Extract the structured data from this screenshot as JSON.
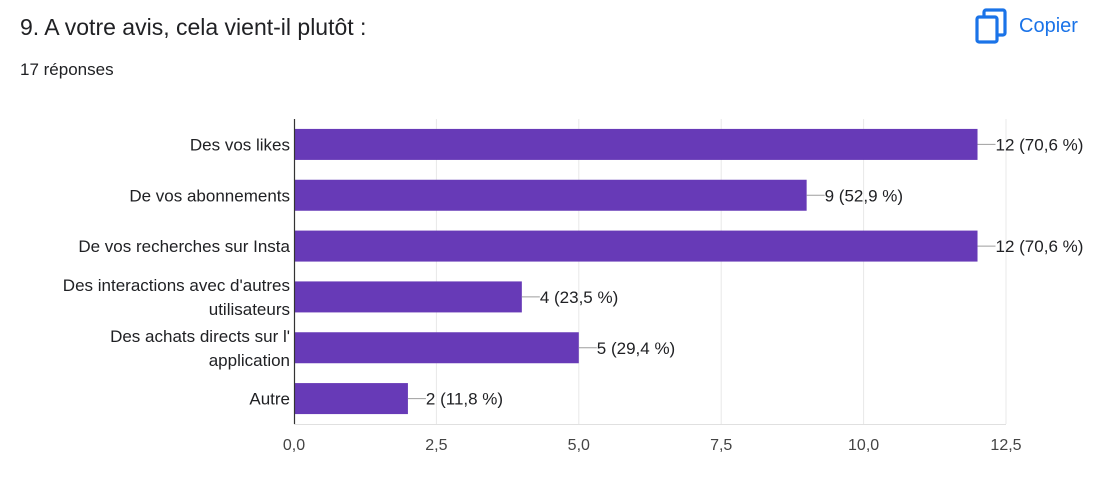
{
  "header": {
    "question_title": "9. A votre avis, cela vient-il plutôt :",
    "response_count": "17 réponses",
    "copy_label": "Copier",
    "copy_icon": "copy-icon",
    "accent_color": "#1a73e8"
  },
  "chart_data": {
    "type": "bar",
    "orientation": "horizontal",
    "categories": [
      [
        "Des vos likes"
      ],
      [
        "De vos abonnements"
      ],
      [
        "De vos recherches sur Insta"
      ],
      [
        "Des interactions avec d'autres",
        "utilisateurs"
      ],
      [
        "Des achats directs sur l'",
        "application"
      ],
      [
        "Autre"
      ]
    ],
    "values": [
      12,
      9,
      12,
      4,
      5,
      2
    ],
    "data_labels": [
      "12 (70,6 %)",
      "9 (52,9 %)",
      "12 (70,6 %)",
      "4 (23,5 %)",
      "5 (29,4 %)",
      "2 (11,8 %)"
    ],
    "xticks": [
      "0,0",
      "2,5",
      "5,0",
      "7,5",
      "10,0",
      "12,5"
    ],
    "xlim": [
      0,
      12.5
    ],
    "grid": true,
    "bar_color": "#673ab7"
  }
}
